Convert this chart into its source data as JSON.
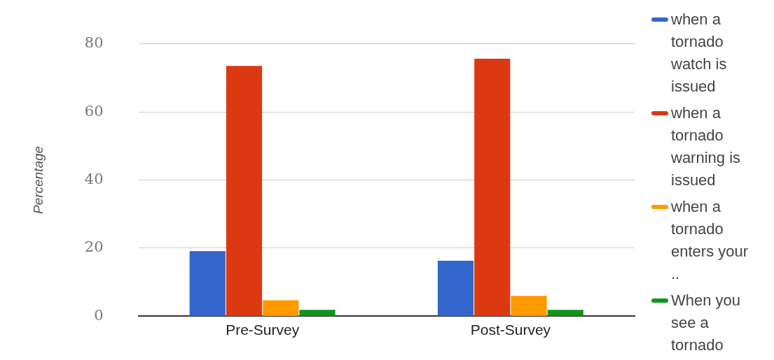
{
  "chart_data": {
    "type": "bar",
    "ylabel": "Percentage",
    "categories": [
      "Pre-Survey",
      "Post-Survey"
    ],
    "series": [
      {
        "name": "when a tornado watch is issued",
        "color": "#3366cc",
        "values": [
          19.1,
          16.3
        ]
      },
      {
        "name": "when a tornado warning is issued",
        "color": "#dc3912",
        "values": [
          73.5,
          75.6
        ]
      },
      {
        "name": "when a tornado enters your ..",
        "color": "#ff9900",
        "values": [
          4.7,
          6.0
        ]
      },
      {
        "name": "When you see a tornado",
        "color": "#109618",
        "values": [
          1.9,
          1.9
        ]
      }
    ],
    "ylim": [
      0,
      80
    ],
    "yticks": [
      0,
      20,
      40,
      60,
      80
    ],
    "grid": "y",
    "legend": "right"
  }
}
